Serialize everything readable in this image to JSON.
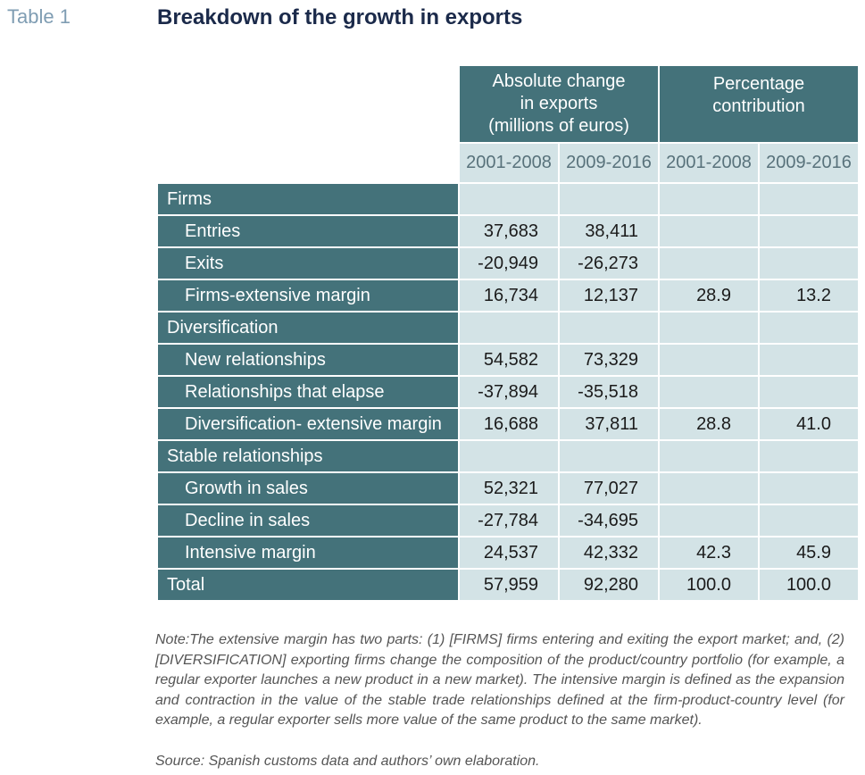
{
  "table_label": "Table 1",
  "title": "Breakdown of the growth in exports",
  "headers": {
    "absolute_lines": [
      "Absolute change",
      "in exports",
      "(millions of euros)"
    ],
    "percentage_lines": [
      "Percentage",
      "contribution"
    ],
    "years": [
      "2001-2008",
      "2009-2016",
      "2001-2008",
      "2009-2016"
    ]
  },
  "rows": [
    {
      "label": "Firms",
      "type": "group",
      "values": [
        "",
        "",
        "",
        ""
      ]
    },
    {
      "label": "Entries",
      "type": "sub",
      "values": [
        "37,683",
        "38,411",
        "",
        ""
      ]
    },
    {
      "label": "Exits",
      "type": "sub",
      "values": [
        "-20,949",
        "-26,273",
        "",
        ""
      ]
    },
    {
      "label": "Firms-extensive margin",
      "type": "sub",
      "values": [
        "16,734",
        "12,137",
        "28.9",
        "13.2"
      ]
    },
    {
      "label": "Diversification",
      "type": "group",
      "values": [
        "",
        "",
        "",
        ""
      ]
    },
    {
      "label": "New relationships",
      "type": "sub",
      "values": [
        "54,582",
        "73,329",
        "",
        ""
      ]
    },
    {
      "label": "Relationships that elapse",
      "type": "sub",
      "values": [
        "-37,894",
        "-35,518",
        "",
        ""
      ]
    },
    {
      "label": "Diversification- extensive margin",
      "type": "sub",
      "values": [
        "16,688",
        "37,811",
        "28.8",
        "41.0"
      ]
    },
    {
      "label": "Stable relationships",
      "type": "group",
      "values": [
        "",
        "",
        "",
        ""
      ]
    },
    {
      "label": "Growth in sales",
      "type": "sub",
      "values": [
        "52,321",
        "77,027",
        "",
        ""
      ]
    },
    {
      "label": "Decline in sales",
      "type": "sub",
      "values": [
        "-27,784",
        "-34,695",
        "",
        ""
      ]
    },
    {
      "label": "Intensive margin",
      "type": "sub",
      "values": [
        "24,537",
        "42,332",
        "42.3",
        "45.9"
      ]
    },
    {
      "label": "Total",
      "type": "group",
      "values": [
        "57,959",
        "92,280",
        "100.0",
        "100.0"
      ]
    }
  ],
  "note": "Note:The extensive margin has two parts: (1) [FIRMS] firms entering and exiting the export market; and, (2) [DIVERSIFICATION] exporting firms change the composition of the product/country portfolio (for example, a regular exporter launches a new product in a new market). The intensive margin is defined as the expansion and contraction in the value of the stable trade relationships defined at the firm-product-country level (for example, a regular exporter sells more value of the same product to the same market).",
  "source": "Source: Spanish customs data and authors’ own elaboration."
}
